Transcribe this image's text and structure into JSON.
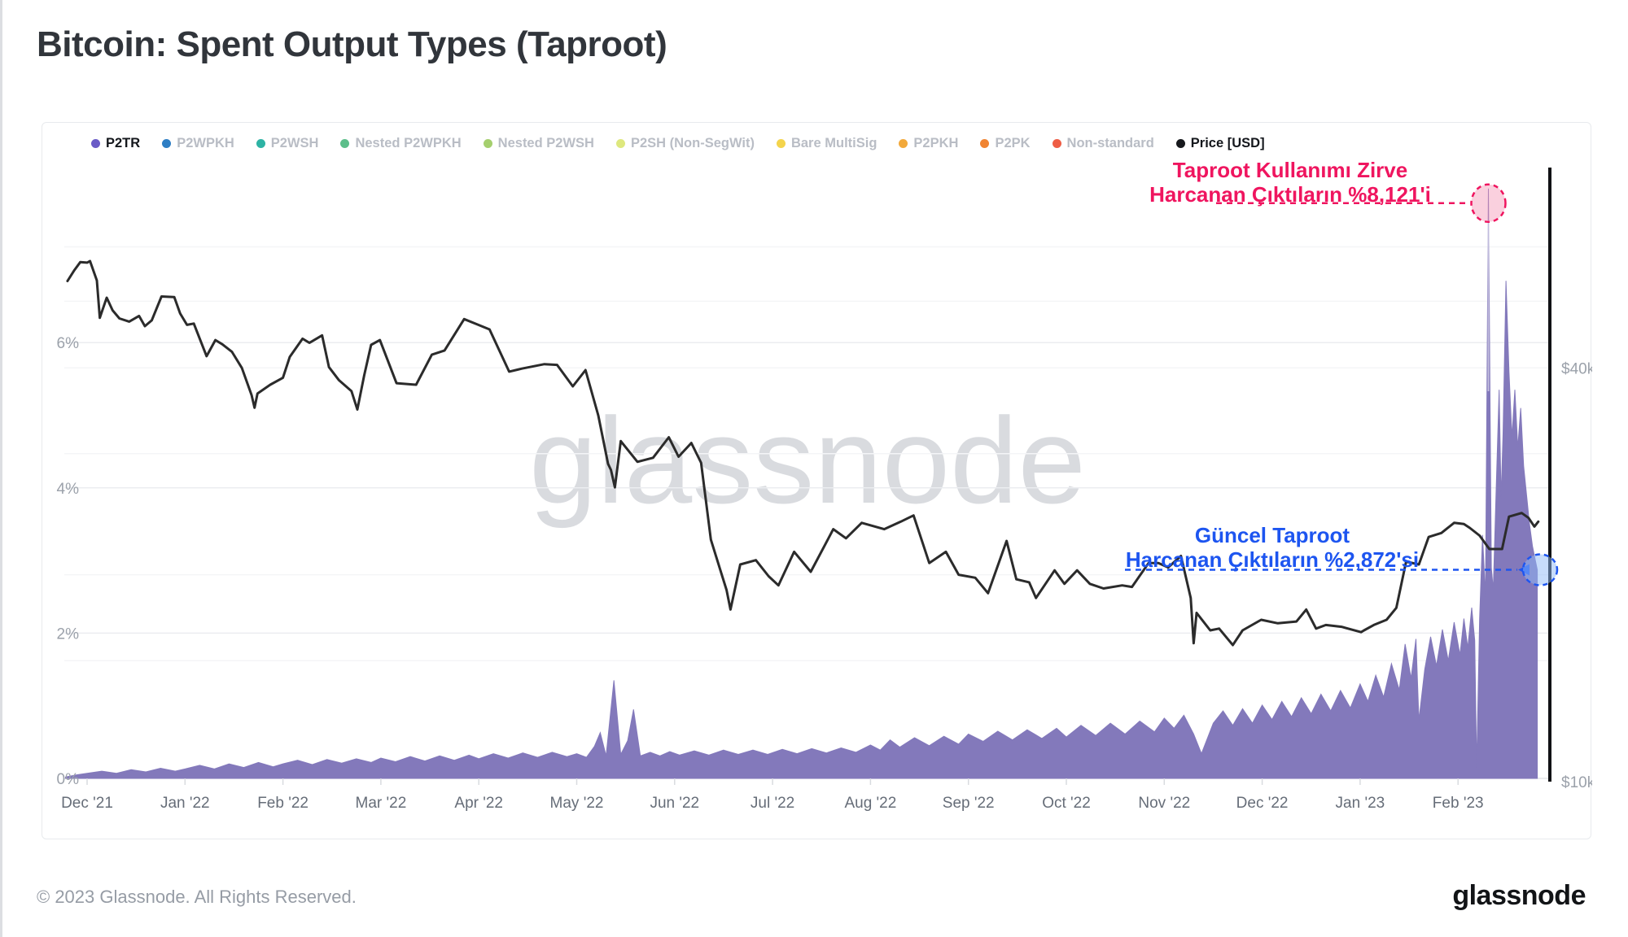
{
  "page": {
    "title": "Bitcoin: Spent Output Types (Taproot)"
  },
  "legend": {
    "items": [
      {
        "label": "P2TR",
        "color": "#6A5BC7",
        "active": true
      },
      {
        "label": "P2WPKH",
        "color": "#2E7EC4",
        "active": false
      },
      {
        "label": "P2WSH",
        "color": "#2EB3A4",
        "active": false
      },
      {
        "label": "Nested P2WPKH",
        "color": "#5CBE8A",
        "active": false
      },
      {
        "label": "Nested P2WSH",
        "color": "#A5CF6E",
        "active": false
      },
      {
        "label": "P2SH (Non-SegWit)",
        "color": "#DEE87E",
        "active": false
      },
      {
        "label": "Bare MultiSig",
        "color": "#F4D44C",
        "active": false
      },
      {
        "label": "P2PKH",
        "color": "#F2A93B",
        "active": false
      },
      {
        "label": "P2PK",
        "color": "#F08432",
        "active": false
      },
      {
        "label": "Non-standard",
        "color": "#EE5D45",
        "active": false
      },
      {
        "label": "Price [USD]",
        "color": "#17191d",
        "active": true
      }
    ]
  },
  "annotations": {
    "peak": {
      "line1": "Taproot Kullanımı Zirve",
      "line2": "Harcanan Çıktıların %8,121'i",
      "color": "#ef155f",
      "value_pct": 8.121
    },
    "current": {
      "line1": "Güncel Taproot",
      "line2": "Harcanan Çıktıların %2,872'si",
      "color": "#1d55f0",
      "value_pct": 2.872
    }
  },
  "watermark": "glassnode",
  "footer": {
    "copyright": "© 2023 Glassnode. All Rights Reserved.",
    "logo": "glassnode"
  },
  "chart_data": {
    "type": "area",
    "title": "Bitcoin: Spent Output Types (Taproot)",
    "x_ticks": [
      "Dec '21",
      "Jan '22",
      "Feb '22",
      "Mar '22",
      "Apr '22",
      "May '22",
      "Jun '22",
      "Jul '22",
      "Aug '22",
      "Sep '22",
      "Oct '22",
      "Nov '22",
      "Dec '22",
      "Jan '23",
      "Feb '23"
    ],
    "y_left_ticks": [
      {
        "label": "0%",
        "value": 0
      },
      {
        "label": "2%",
        "value": 2
      },
      {
        "label": "4%",
        "value": 4
      },
      {
        "label": "6%",
        "value": 6
      }
    ],
    "y_right_ticks": [
      {
        "label": "$40k",
        "value": 40
      },
      {
        "label": "$10k",
        "value": 10
      }
    ],
    "y_right_minor_gridlines": [
      60,
      50,
      40,
      30,
      20,
      15
    ],
    "y_right_scale": "log",
    "grid": true,
    "legend_position": "top",
    "series": [
      {
        "name": "P2TR",
        "type": "area",
        "unit": "percent_of_spent_outputs",
        "color": "#8379BB",
        "points": [
          [
            -0.22,
            0.02
          ],
          [
            -0.1,
            0.05
          ],
          [
            0,
            0.07
          ],
          [
            0.15,
            0.1
          ],
          [
            0.3,
            0.07
          ],
          [
            0.45,
            0.12
          ],
          [
            0.6,
            0.09
          ],
          [
            0.75,
            0.14
          ],
          [
            0.9,
            0.1
          ],
          [
            1.0,
            0.13
          ],
          [
            1.15,
            0.18
          ],
          [
            1.3,
            0.13
          ],
          [
            1.45,
            0.2
          ],
          [
            1.6,
            0.15
          ],
          [
            1.75,
            0.22
          ],
          [
            1.9,
            0.16
          ],
          [
            2.0,
            0.2
          ],
          [
            2.15,
            0.25
          ],
          [
            2.3,
            0.19
          ],
          [
            2.45,
            0.26
          ],
          [
            2.6,
            0.21
          ],
          [
            2.75,
            0.27
          ],
          [
            2.9,
            0.22
          ],
          [
            3.0,
            0.28
          ],
          [
            3.15,
            0.23
          ],
          [
            3.3,
            0.3
          ],
          [
            3.45,
            0.24
          ],
          [
            3.6,
            0.31
          ],
          [
            3.75,
            0.25
          ],
          [
            3.9,
            0.32
          ],
          [
            4.0,
            0.27
          ],
          [
            4.15,
            0.34
          ],
          [
            4.3,
            0.28
          ],
          [
            4.45,
            0.35
          ],
          [
            4.6,
            0.29
          ],
          [
            4.75,
            0.36
          ],
          [
            4.9,
            0.3
          ],
          [
            5.0,
            0.34
          ],
          [
            5.1,
            0.29
          ],
          [
            5.18,
            0.44
          ],
          [
            5.24,
            0.63
          ],
          [
            5.3,
            0.31
          ],
          [
            5.38,
            1.35
          ],
          [
            5.45,
            0.33
          ],
          [
            5.52,
            0.52
          ],
          [
            5.58,
            0.95
          ],
          [
            5.65,
            0.31
          ],
          [
            5.75,
            0.36
          ],
          [
            5.85,
            0.31
          ],
          [
            5.95,
            0.37
          ],
          [
            6.05,
            0.32
          ],
          [
            6.2,
            0.38
          ],
          [
            6.35,
            0.32
          ],
          [
            6.5,
            0.39
          ],
          [
            6.65,
            0.33
          ],
          [
            6.8,
            0.39
          ],
          [
            6.95,
            0.33
          ],
          [
            7.1,
            0.4
          ],
          [
            7.25,
            0.34
          ],
          [
            7.4,
            0.41
          ],
          [
            7.55,
            0.35
          ],
          [
            7.7,
            0.42
          ],
          [
            7.85,
            0.36
          ],
          [
            8.0,
            0.46
          ],
          [
            8.1,
            0.39
          ],
          [
            8.2,
            0.53
          ],
          [
            8.3,
            0.43
          ],
          [
            8.45,
            0.56
          ],
          [
            8.6,
            0.45
          ],
          [
            8.75,
            0.58
          ],
          [
            8.9,
            0.47
          ],
          [
            9.0,
            0.61
          ],
          [
            9.15,
            0.51
          ],
          [
            9.3,
            0.65
          ],
          [
            9.45,
            0.53
          ],
          [
            9.6,
            0.67
          ],
          [
            9.75,
            0.55
          ],
          [
            9.9,
            0.69
          ],
          [
            10.0,
            0.57
          ],
          [
            10.15,
            0.73
          ],
          [
            10.3,
            0.59
          ],
          [
            10.45,
            0.76
          ],
          [
            10.6,
            0.61
          ],
          [
            10.75,
            0.79
          ],
          [
            10.9,
            0.64
          ],
          [
            11.0,
            0.83
          ],
          [
            11.1,
            0.69
          ],
          [
            11.2,
            0.87
          ],
          [
            11.3,
            0.61
          ],
          [
            11.38,
            0.34
          ],
          [
            11.5,
            0.76
          ],
          [
            11.6,
            0.93
          ],
          [
            11.7,
            0.73
          ],
          [
            11.8,
            0.96
          ],
          [
            11.9,
            0.76
          ],
          [
            12.0,
            1.01
          ],
          [
            12.1,
            0.81
          ],
          [
            12.2,
            1.06
          ],
          [
            12.3,
            0.85
          ],
          [
            12.4,
            1.11
          ],
          [
            12.5,
            0.89
          ],
          [
            12.6,
            1.16
          ],
          [
            12.7,
            0.93
          ],
          [
            12.8,
            1.21
          ],
          [
            12.9,
            0.97
          ],
          [
            13.0,
            1.3
          ],
          [
            13.08,
            1.06
          ],
          [
            13.16,
            1.42
          ],
          [
            13.24,
            1.12
          ],
          [
            13.32,
            1.58
          ],
          [
            13.4,
            1.22
          ],
          [
            13.46,
            1.85
          ],
          [
            13.52,
            1.38
          ],
          [
            13.57,
            1.92
          ],
          [
            13.6,
            0.8
          ],
          [
            13.66,
            1.5
          ],
          [
            13.72,
            1.95
          ],
          [
            13.78,
            1.55
          ],
          [
            13.84,
            2.05
          ],
          [
            13.9,
            1.62
          ],
          [
            13.96,
            2.15
          ],
          [
            14.02,
            1.7
          ],
          [
            14.06,
            2.2
          ],
          [
            14.1,
            1.8
          ],
          [
            14.14,
            2.35
          ],
          [
            14.17,
            1.9
          ],
          [
            14.19,
            0.15
          ],
          [
            14.22,
            2.2
          ],
          [
            14.25,
            3.35
          ],
          [
            14.28,
            2.5
          ],
          [
            14.31,
            8.12
          ],
          [
            14.34,
            2.9
          ],
          [
            14.36,
            2.6
          ],
          [
            14.39,
            4.0
          ],
          [
            14.42,
            5.35
          ],
          [
            14.44,
            3.85
          ],
          [
            14.46,
            4.75
          ],
          [
            14.49,
            6.85
          ],
          [
            14.52,
            5.6
          ],
          [
            14.55,
            4.7
          ],
          [
            14.58,
            5.35
          ],
          [
            14.61,
            4.55
          ],
          [
            14.64,
            5.1
          ],
          [
            14.67,
            4.3
          ],
          [
            14.7,
            3.9
          ],
          [
            14.73,
            3.5
          ],
          [
            14.76,
            3.2
          ],
          [
            14.79,
            3.0
          ],
          [
            14.81,
            2.87
          ]
        ]
      },
      {
        "name": "Price [USD]",
        "type": "line",
        "unit": "usd_thousands",
        "color": "#2b2b2b",
        "points": [
          [
            -0.2,
            53.5
          ],
          [
            -0.13,
            55.5
          ],
          [
            -0.07,
            57.0
          ],
          [
            0,
            56.9
          ],
          [
            0.03,
            57.2
          ],
          [
            0.1,
            53.6
          ],
          [
            0.13,
            47.3
          ],
          [
            0.2,
            50.6
          ],
          [
            0.26,
            48.5
          ],
          [
            0.33,
            47.2
          ],
          [
            0.43,
            46.7
          ],
          [
            0.53,
            47.6
          ],
          [
            0.59,
            46.0
          ],
          [
            0.66,
            46.9
          ],
          [
            0.76,
            50.8
          ],
          [
            0.89,
            50.7
          ],
          [
            0.95,
            48.0
          ],
          [
            1.02,
            46.2
          ],
          [
            1.09,
            46.4
          ],
          [
            1.22,
            41.6
          ],
          [
            1.31,
            43.9
          ],
          [
            1.38,
            43.3
          ],
          [
            1.48,
            42.2
          ],
          [
            1.58,
            40.0
          ],
          [
            1.68,
            36.5
          ],
          [
            1.71,
            35.0
          ],
          [
            1.74,
            36.7
          ],
          [
            1.87,
            37.8
          ],
          [
            2.0,
            38.7
          ],
          [
            2.07,
            41.5
          ],
          [
            2.2,
            44.1
          ],
          [
            2.27,
            43.5
          ],
          [
            2.4,
            44.6
          ],
          [
            2.47,
            40.1
          ],
          [
            2.57,
            38.4
          ],
          [
            2.7,
            37.0
          ],
          [
            2.76,
            34.8
          ],
          [
            2.83,
            39.0
          ],
          [
            2.9,
            43.2
          ],
          [
            2.99,
            43.9
          ],
          [
            3.16,
            38.0
          ],
          [
            3.36,
            37.8
          ],
          [
            3.52,
            41.8
          ],
          [
            3.65,
            42.4
          ],
          [
            3.85,
            47.1
          ],
          [
            3.98,
            46.3
          ],
          [
            4.11,
            45.5
          ],
          [
            4.31,
            39.5
          ],
          [
            4.44,
            39.9
          ],
          [
            4.67,
            40.5
          ],
          [
            4.8,
            40.4
          ],
          [
            4.96,
            37.6
          ],
          [
            5.09,
            39.7
          ],
          [
            5.22,
            34.1
          ],
          [
            5.32,
            29.0
          ],
          [
            5.35,
            28.4
          ],
          [
            5.39,
            26.8
          ],
          [
            5.45,
            31.3
          ],
          [
            5.62,
            29.2
          ],
          [
            5.78,
            29.6
          ],
          [
            5.94,
            31.7
          ],
          [
            6.04,
            29.7
          ],
          [
            6.17,
            31.1
          ],
          [
            6.27,
            29.1
          ],
          [
            6.37,
            22.5
          ],
          [
            6.53,
            19.0
          ],
          [
            6.57,
            17.8
          ],
          [
            6.67,
            20.7
          ],
          [
            6.83,
            21.0
          ],
          [
            6.96,
            19.9
          ],
          [
            7.06,
            19.3
          ],
          [
            7.22,
            21.6
          ],
          [
            7.39,
            20.2
          ],
          [
            7.62,
            23.3
          ],
          [
            7.75,
            22.6
          ],
          [
            7.91,
            23.8
          ],
          [
            8.14,
            23.3
          ],
          [
            8.31,
            23.9
          ],
          [
            8.44,
            24.4
          ],
          [
            8.6,
            20.8
          ],
          [
            8.77,
            21.6
          ],
          [
            8.9,
            20.0
          ],
          [
            9.07,
            19.8
          ],
          [
            9.2,
            18.8
          ],
          [
            9.39,
            22.4
          ],
          [
            9.49,
            19.7
          ],
          [
            9.62,
            19.5
          ],
          [
            9.69,
            18.5
          ],
          [
            9.88,
            20.3
          ],
          [
            9.98,
            19.4
          ],
          [
            10.11,
            20.3
          ],
          [
            10.24,
            19.4
          ],
          [
            10.38,
            19.1
          ],
          [
            10.57,
            19.3
          ],
          [
            10.67,
            19.2
          ],
          [
            10.84,
            20.8
          ],
          [
            10.94,
            20.8
          ],
          [
            11.04,
            20.5
          ],
          [
            11.17,
            21.3
          ],
          [
            11.27,
            18.5
          ],
          [
            11.3,
            15.9
          ],
          [
            11.33,
            17.6
          ],
          [
            11.47,
            16.6
          ],
          [
            11.56,
            16.7
          ],
          [
            11.7,
            15.8
          ],
          [
            11.8,
            16.6
          ],
          [
            11.99,
            17.2
          ],
          [
            12.16,
            17.0
          ],
          [
            12.35,
            17.1
          ],
          [
            12.45,
            17.8
          ],
          [
            12.55,
            16.7
          ],
          [
            12.65,
            16.9
          ],
          [
            12.81,
            16.8
          ],
          [
            13.01,
            16.5
          ],
          [
            13.04,
            16.6
          ],
          [
            13.14,
            16.9
          ],
          [
            13.27,
            17.2
          ],
          [
            13.37,
            17.9
          ],
          [
            13.47,
            20.9
          ],
          [
            13.6,
            20.7
          ],
          [
            13.7,
            22.7
          ],
          [
            13.83,
            23.0
          ],
          [
            13.96,
            23.8
          ],
          [
            14.06,
            23.7
          ],
          [
            14.12,
            23.4
          ],
          [
            14.22,
            22.8
          ],
          [
            14.32,
            21.8
          ],
          [
            14.45,
            21.8
          ],
          [
            14.52,
            24.3
          ],
          [
            14.65,
            24.6
          ],
          [
            14.72,
            24.2
          ],
          [
            14.78,
            23.5
          ],
          [
            14.82,
            23.9
          ]
        ]
      }
    ]
  }
}
